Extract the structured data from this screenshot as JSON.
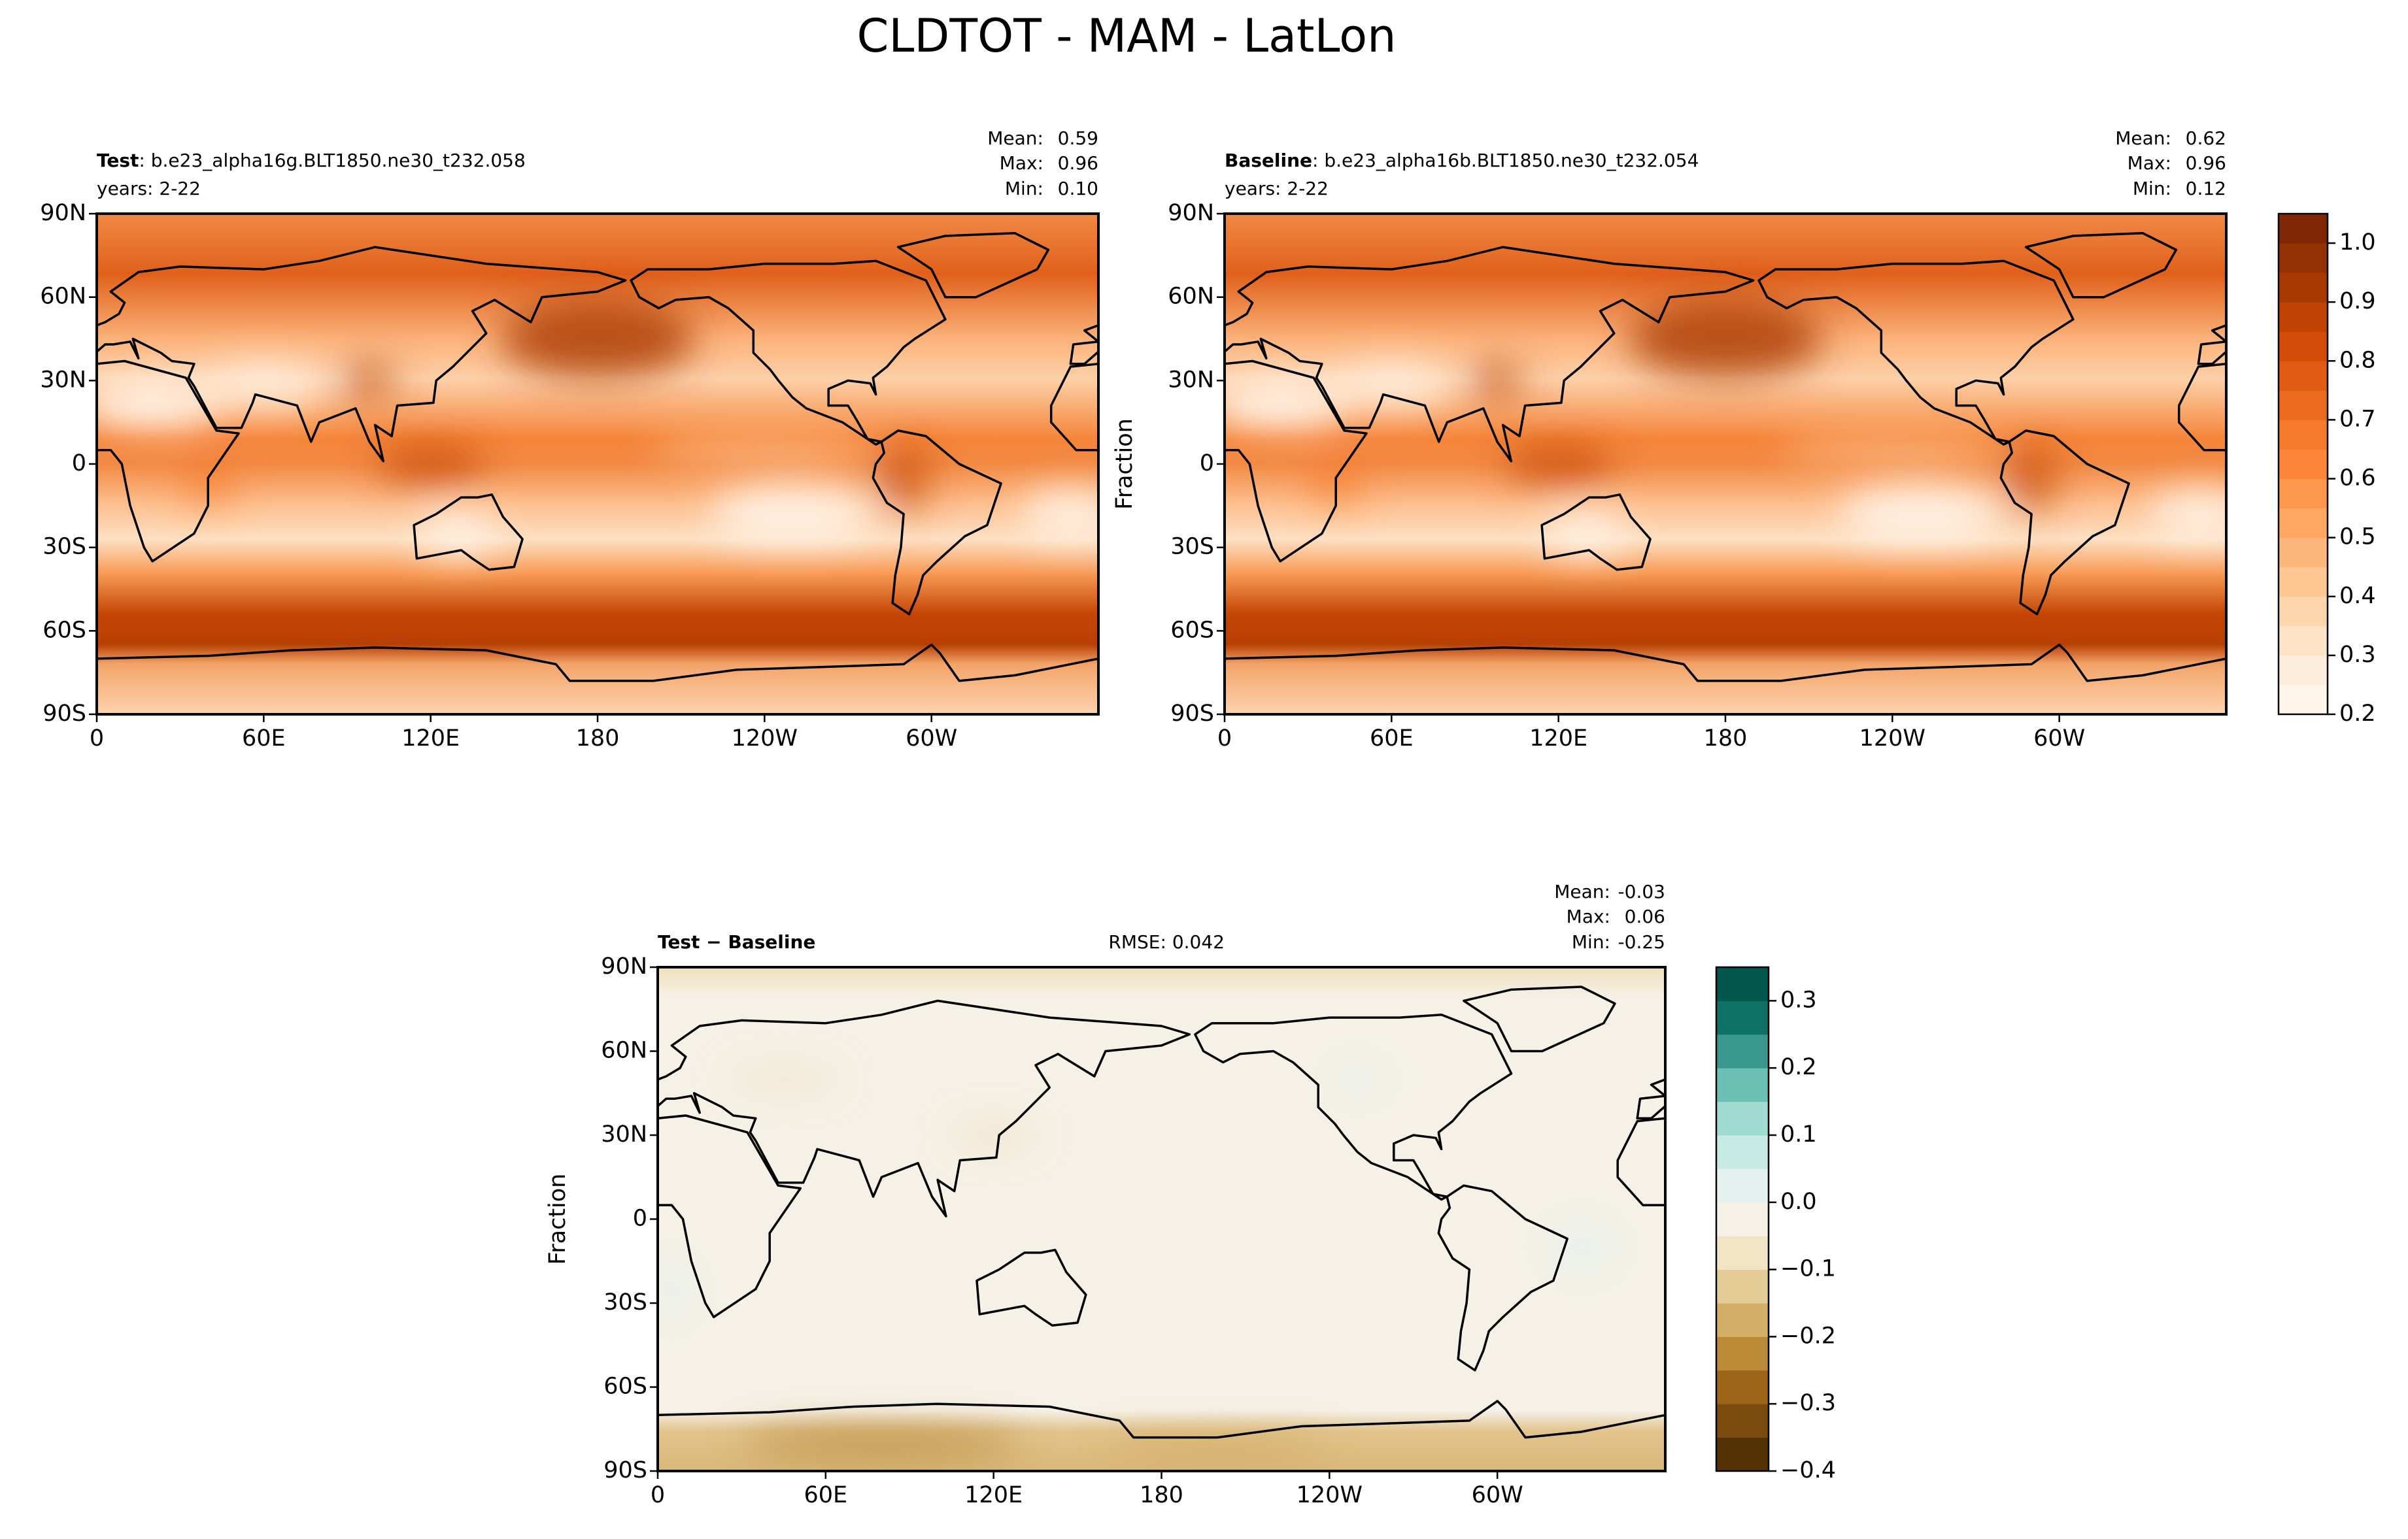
{
  "title": "CLDTOT - MAM - LatLon",
  "chart_data": [
    {
      "type": "contour-map",
      "label": "Test",
      "name": ": b.e23_alpha16g.BLT1850.ne30_t232.058",
      "subtitle": "years: 2-22",
      "stats": {
        "names": [
          "Mean:",
          "Max:",
          "Min:"
        ],
        "values": [
          0.59,
          0.96,
          0.1
        ],
        "value_labels": [
          "0.59",
          "0.96",
          "0.10"
        ]
      },
      "xlim": [
        0,
        360
      ],
      "ylim": [
        -90,
        90
      ],
      "xticks": [
        0,
        {
          "value": 60,
          "label": "60E"
        },
        {
          "value": 120,
          "label": "120E"
        },
        180,
        {
          "value": 240,
          "label": "120W"
        },
        {
          "value": 300,
          "label": "60W"
        }
      ],
      "yticks": [
        {
          "value": -90,
          "label": "90S"
        },
        {
          "value": -60,
          "label": "60S"
        },
        {
          "value": -30,
          "label": "30S"
        },
        0,
        {
          "value": 30,
          "label": "30N"
        },
        {
          "value": 60,
          "label": "60N"
        },
        {
          "value": 90,
          "label": "90N"
        }
      ]
    },
    {
      "type": "contour-map",
      "label": "Baseline",
      "name": ": b.e23_alpha16b.BLT1850.ne30_t232.054",
      "subtitle": "years: 2-22",
      "ylabel": "Fraction",
      "stats": {
        "names": [
          "Mean:",
          "Max:",
          "Min:"
        ],
        "values": [
          0.62,
          0.96,
          0.12
        ],
        "value_labels": [
          "0.62",
          "0.96",
          "0.12"
        ]
      },
      "xlim": [
        0,
        360
      ],
      "ylim": [
        -90,
        90
      ],
      "xticks": [
        0,
        {
          "value": 60,
          "label": "60E"
        },
        {
          "value": 120,
          "label": "120E"
        },
        180,
        {
          "value": 240,
          "label": "120W"
        },
        {
          "value": 300,
          "label": "60W"
        }
      ],
      "yticks": [
        {
          "value": -90,
          "label": "90S"
        },
        {
          "value": -60,
          "label": "60S"
        },
        {
          "value": -30,
          "label": "30S"
        },
        0,
        {
          "value": 30,
          "label": "30N"
        },
        {
          "value": 60,
          "label": "60N"
        },
        {
          "value": 90,
          "label": "90N"
        }
      ],
      "colorbar": {
        "levels": [
          0.2,
          0.25,
          0.3,
          0.35,
          0.4,
          0.45,
          0.5,
          0.55,
          0.6,
          0.65,
          0.7,
          0.75,
          0.8,
          0.85,
          0.9,
          0.95,
          1.0,
          1.05
        ],
        "colors": [
          "#fff5eb",
          "#feeddc",
          "#fee3c8",
          "#fdd6ae",
          "#fdc794",
          "#fdb77a",
          "#fda762",
          "#fd974e",
          "#fb8639",
          "#f57a2c",
          "#ec6a1e",
          "#e15b12",
          "#d24c07",
          "#c04303",
          "#a93903",
          "#933104",
          "#7f2704"
        ],
        "ticks": [
          0.2,
          0.3,
          0.4,
          0.5,
          0.6,
          0.7,
          0.8,
          0.9,
          {
            "value": 1,
            "label": "1.0"
          }
        ]
      }
    },
    {
      "type": "contour-map",
      "label": "Test − Baseline",
      "ylabel": "Fraction",
      "rmse": {
        "name": "RMSE:",
        "value": 0.042
      },
      "stats": {
        "names": [
          "Mean:",
          "Max:",
          "Min:"
        ],
        "values": [
          -0.03,
          0.06,
          -0.25
        ],
        "value_labels": [
          "-0.03",
          "0.06",
          "-0.25"
        ]
      },
      "xlim": [
        0,
        360
      ],
      "ylim": [
        -90,
        90
      ],
      "xticks": [
        0,
        {
          "value": 60,
          "label": "60E"
        },
        {
          "value": 120,
          "label": "120E"
        },
        180,
        {
          "value": 240,
          "label": "120W"
        },
        {
          "value": 300,
          "label": "60W"
        }
      ],
      "yticks": [
        {
          "value": -90,
          "label": "90S"
        },
        {
          "value": -60,
          "label": "60S"
        },
        {
          "value": -30,
          "label": "30S"
        },
        0,
        {
          "value": 30,
          "label": "30N"
        },
        {
          "value": 60,
          "label": "60N"
        },
        {
          "value": 90,
          "label": "90N"
        }
      ],
      "colorbar": {
        "levels": [
          -0.4,
          -0.35,
          -0.3,
          -0.25,
          -0.2,
          -0.15,
          -0.1,
          -0.05,
          0,
          0.05,
          0.1,
          0.15,
          0.2,
          0.25,
          0.3,
          0.35
        ],
        "colors": [
          "#543005",
          "#7b4b0e",
          "#9c6519",
          "#bb8a36",
          "#d2ae66",
          "#e4cc97",
          "#f2e5c5",
          "#f5f1e6",
          "#e4f1ef",
          "#c7eae5",
          "#9fdbd1",
          "#6cc0b3",
          "#3a978e",
          "#0f7066",
          "#01574c"
        ],
        "ticks": [
          {
            "value": -0.4,
            "label": "−0.4"
          },
          {
            "value": -0.3,
            "label": "−0.3"
          },
          {
            "value": -0.2,
            "label": "−0.2"
          },
          {
            "value": -0.1,
            "label": "−0.1"
          },
          {
            "value": 0,
            "label": "0.0"
          },
          0.1,
          0.2,
          0.3
        ]
      }
    }
  ]
}
